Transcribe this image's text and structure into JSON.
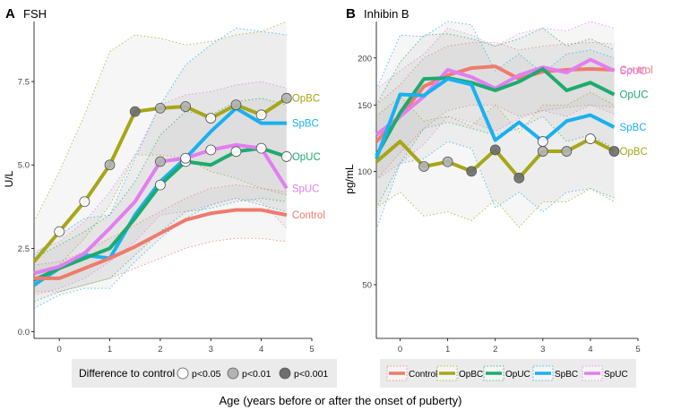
{
  "figure": {
    "xlabel": "Age (years before or after the onset of puberty)",
    "legend_left": {
      "title": "Difference to control",
      "items": [
        {
          "label": "p<0.05",
          "fill": "#ffffff"
        },
        {
          "label": "p<0.01",
          "fill": "#b3b3b3"
        },
        {
          "label": "p<0.001",
          "fill": "#6e6e6e"
        }
      ]
    },
    "legend_right": {
      "items": [
        "Control",
        "OpBC",
        "OpUC",
        "SpBC",
        "SpUC"
      ]
    }
  },
  "colors": {
    "Control": "#f07a6e",
    "OpBC": "#a6a619",
    "OpUC": "#1dab6e",
    "SpBC": "#1ab0f0",
    "SpUC": "#e27ef0",
    "ribbon": "#999999",
    "sig": {
      "p<0.05": "#ffffff",
      "p<0.01": "#b3b3b3",
      "p<0.001": "#6e6e6e"
    }
  },
  "chart_data": [
    {
      "type": "line",
      "panel_letter": "A",
      "title": "FSH",
      "ylabel": "U/L",
      "scale": "linear",
      "xlim": [
        -0.5,
        5
      ],
      "ylim": [
        -0.2,
        9.3
      ],
      "x_ticks": [
        0,
        1,
        2,
        3,
        4,
        5
      ],
      "x_tick_labels": [
        "0",
        "1",
        "2",
        "3",
        "4",
        "5"
      ],
      "y_ticks": [
        0,
        2.5,
        5,
        7.5
      ],
      "y_tick_labels": [
        "0.0",
        "2.5",
        "5.0",
        "7.5"
      ],
      "x": [
        -0.5,
        0,
        0.5,
        1,
        1.5,
        2,
        2.5,
        3,
        3.5,
        4,
        4.5
      ],
      "series": [
        {
          "name": "OpBC",
          "label": "OpBC",
          "values": [
            2.1,
            3.0,
            3.9,
            5.0,
            6.6,
            6.7,
            6.75,
            6.4,
            6.8,
            6.5,
            7.0
          ],
          "lower": [
            1.3,
            2.0,
            2.8,
            3.8,
            5.3,
            5.3,
            5.2,
            4.8,
            4.6,
            4.3,
            4.1
          ],
          "upper": [
            3.3,
            4.8,
            6.5,
            8.4,
            8.9,
            8.8,
            8.6,
            8.7,
            8.9,
            9.0,
            9.3
          ],
          "sig": [
            null,
            "p<0.05",
            "p<0.05",
            "p<0.01",
            "p<0.001",
            "p<0.01",
            "p<0.01",
            "p<0.05",
            "p<0.01",
            "p<0.05",
            "p<0.01"
          ]
        },
        {
          "name": "SpBC",
          "label": "SpBC",
          "values": [
            1.4,
            1.9,
            2.3,
            2.2,
            3.5,
            4.5,
            5.2,
            6.0,
            6.7,
            6.25,
            6.25
          ],
          "lower": [
            0.7,
            1.1,
            1.3,
            1.3,
            2.1,
            2.8,
            3.4,
            3.8,
            4.0,
            3.8,
            3.6
          ],
          "upper": [
            2.3,
            2.9,
            3.4,
            3.5,
            5.2,
            6.8,
            8.0,
            8.6,
            9.1,
            9.0,
            8.9
          ],
          "sig": [
            null,
            null,
            null,
            null,
            null,
            null,
            null,
            null,
            null,
            null,
            null
          ]
        },
        {
          "name": "OpUC",
          "label": "OpUC",
          "values": [
            1.55,
            1.9,
            2.2,
            2.5,
            3.4,
            4.4,
            5.1,
            5.0,
            5.4,
            5.5,
            5.25
          ],
          "lower": [
            0.9,
            1.2,
            1.4,
            1.6,
            2.3,
            3.0,
            3.6,
            3.7,
            3.9,
            4.0,
            3.9
          ],
          "upper": [
            2.2,
            2.6,
            3.0,
            3.5,
            4.5,
            5.9,
            6.6,
            6.5,
            6.9,
            7.0,
            6.8
          ],
          "sig": [
            null,
            null,
            null,
            null,
            null,
            "p<0.05",
            "p<0.05",
            null,
            "p<0.05",
            "p<0.05",
            "p<0.05"
          ]
        },
        {
          "name": "SpUC",
          "label": "SpUC",
          "values": [
            1.75,
            1.95,
            2.35,
            3.1,
            3.9,
            5.1,
            5.2,
            5.45,
            5.6,
            5.5,
            4.3
          ],
          "lower": [
            1.1,
            1.3,
            1.6,
            2.1,
            2.7,
            3.5,
            3.6,
            3.8,
            4.0,
            3.9,
            3.1
          ],
          "upper": [
            2.4,
            2.7,
            3.3,
            4.2,
            5.3,
            6.8,
            7.1,
            7.2,
            7.4,
            7.5,
            7.3
          ],
          "sig": [
            null,
            null,
            null,
            null,
            null,
            "p<0.01",
            "p<0.05",
            "p<0.05",
            null,
            null,
            null
          ]
        },
        {
          "name": "Control",
          "label": "Control",
          "values": [
            1.6,
            1.6,
            1.9,
            2.2,
            2.55,
            2.95,
            3.35,
            3.55,
            3.65,
            3.65,
            3.5
          ],
          "lower": [
            1.2,
            1.2,
            1.4,
            1.6,
            1.9,
            2.2,
            2.5,
            2.7,
            2.8,
            2.8,
            2.7
          ],
          "upper": [
            2.0,
            2.1,
            2.4,
            2.8,
            3.2,
            3.6,
            4.0,
            4.3,
            4.4,
            4.3,
            4.2
          ],
          "sig": [
            null,
            null,
            null,
            null,
            null,
            null,
            null,
            null,
            null,
            null,
            null
          ]
        }
      ]
    },
    {
      "type": "line",
      "panel_letter": "B",
      "title": "Inhibin B",
      "ylabel": "pg/mL",
      "scale": "log",
      "xlim": [
        -0.5,
        5
      ],
      "ylim": [
        36,
        250
      ],
      "x_ticks": [
        0,
        1,
        2,
        3,
        4,
        5
      ],
      "x_tick_labels": [
        "0",
        "1",
        "2",
        "3",
        "4",
        "5"
      ],
      "y_ticks": [
        50,
        100,
        150,
        200
      ],
      "y_tick_labels": [
        "50",
        "100",
        "150",
        "200"
      ],
      "x": [
        -0.5,
        0,
        0.5,
        1,
        1.5,
        2,
        2.5,
        3,
        3.5,
        4,
        4.5
      ],
      "series": [
        {
          "name": "Control",
          "label": "Control",
          "values": [
            120,
            140,
            168,
            180,
            188,
            190,
            176,
            184,
            186,
            187,
            186
          ],
          "lower": [
            95,
            112,
            130,
            145,
            150,
            150,
            140,
            145,
            148,
            150,
            148
          ],
          "upper": [
            150,
            170,
            200,
            215,
            220,
            220,
            210,
            215,
            218,
            220,
            218
          ],
          "sig": [
            null,
            null,
            null,
            null,
            null,
            null,
            null,
            null,
            null,
            null,
            null
          ]
        },
        {
          "name": "SpUC",
          "label": "SpUC",
          "values": [
            125,
            140,
            158,
            186,
            178,
            166,
            180,
            189,
            183,
            198,
            185
          ],
          "lower": [
            95,
            105,
            118,
            140,
            135,
            128,
            138,
            145,
            140,
            150,
            142
          ],
          "upper": [
            165,
            185,
            205,
            240,
            230,
            215,
            232,
            240,
            236,
            250,
            240
          ],
          "sig": [
            null,
            null,
            null,
            null,
            null,
            null,
            null,
            null,
            null,
            null,
            null
          ]
        },
        {
          "name": "OpUC",
          "label": "OpUC",
          "values": [
            110,
            143,
            176,
            177,
            172,
            164,
            173,
            187,
            164,
            172,
            160
          ],
          "lower": [
            80,
            105,
            130,
            135,
            130,
            125,
            130,
            140,
            120,
            125,
            115
          ],
          "upper": [
            150,
            195,
            230,
            232,
            225,
            215,
            225,
            240,
            215,
            225,
            210
          ],
          "sig": [
            null,
            null,
            null,
            null,
            null,
            null,
            null,
            null,
            null,
            null,
            null
          ]
        },
        {
          "name": "SpBC",
          "label": "SpBC",
          "values": [
            108,
            160,
            159,
            176,
            170,
            121,
            135,
            120,
            136,
            141,
            131
          ],
          "lower": [
            70,
            105,
            108,
            120,
            115,
            80,
            88,
            78,
            88,
            90,
            85
          ],
          "upper": [
            165,
            230,
            228,
            250,
            245,
            185,
            205,
            182,
            205,
            210,
            200
          ],
          "sig": [
            null,
            null,
            null,
            null,
            null,
            null,
            null,
            "p<0.05",
            null,
            null,
            null
          ]
        },
        {
          "name": "OpBC",
          "label": "OpBC",
          "values": [
            106,
            120,
            103,
            106,
            100,
            114,
            96,
            113,
            113,
            122,
            113
          ],
          "lower": [
            80,
            88,
            76,
            78,
            74,
            84,
            71,
            83,
            83,
            90,
            83
          ],
          "upper": [
            140,
            158,
            136,
            140,
            132,
            150,
            127,
            150,
            150,
            162,
            150
          ],
          "sig": [
            null,
            null,
            "p<0.01",
            "p<0.01",
            "p<0.001",
            "p<0.001",
            "p<0.001",
            "p<0.01",
            "p<0.01",
            "p<0.05",
            "p<0.001"
          ]
        }
      ]
    }
  ]
}
